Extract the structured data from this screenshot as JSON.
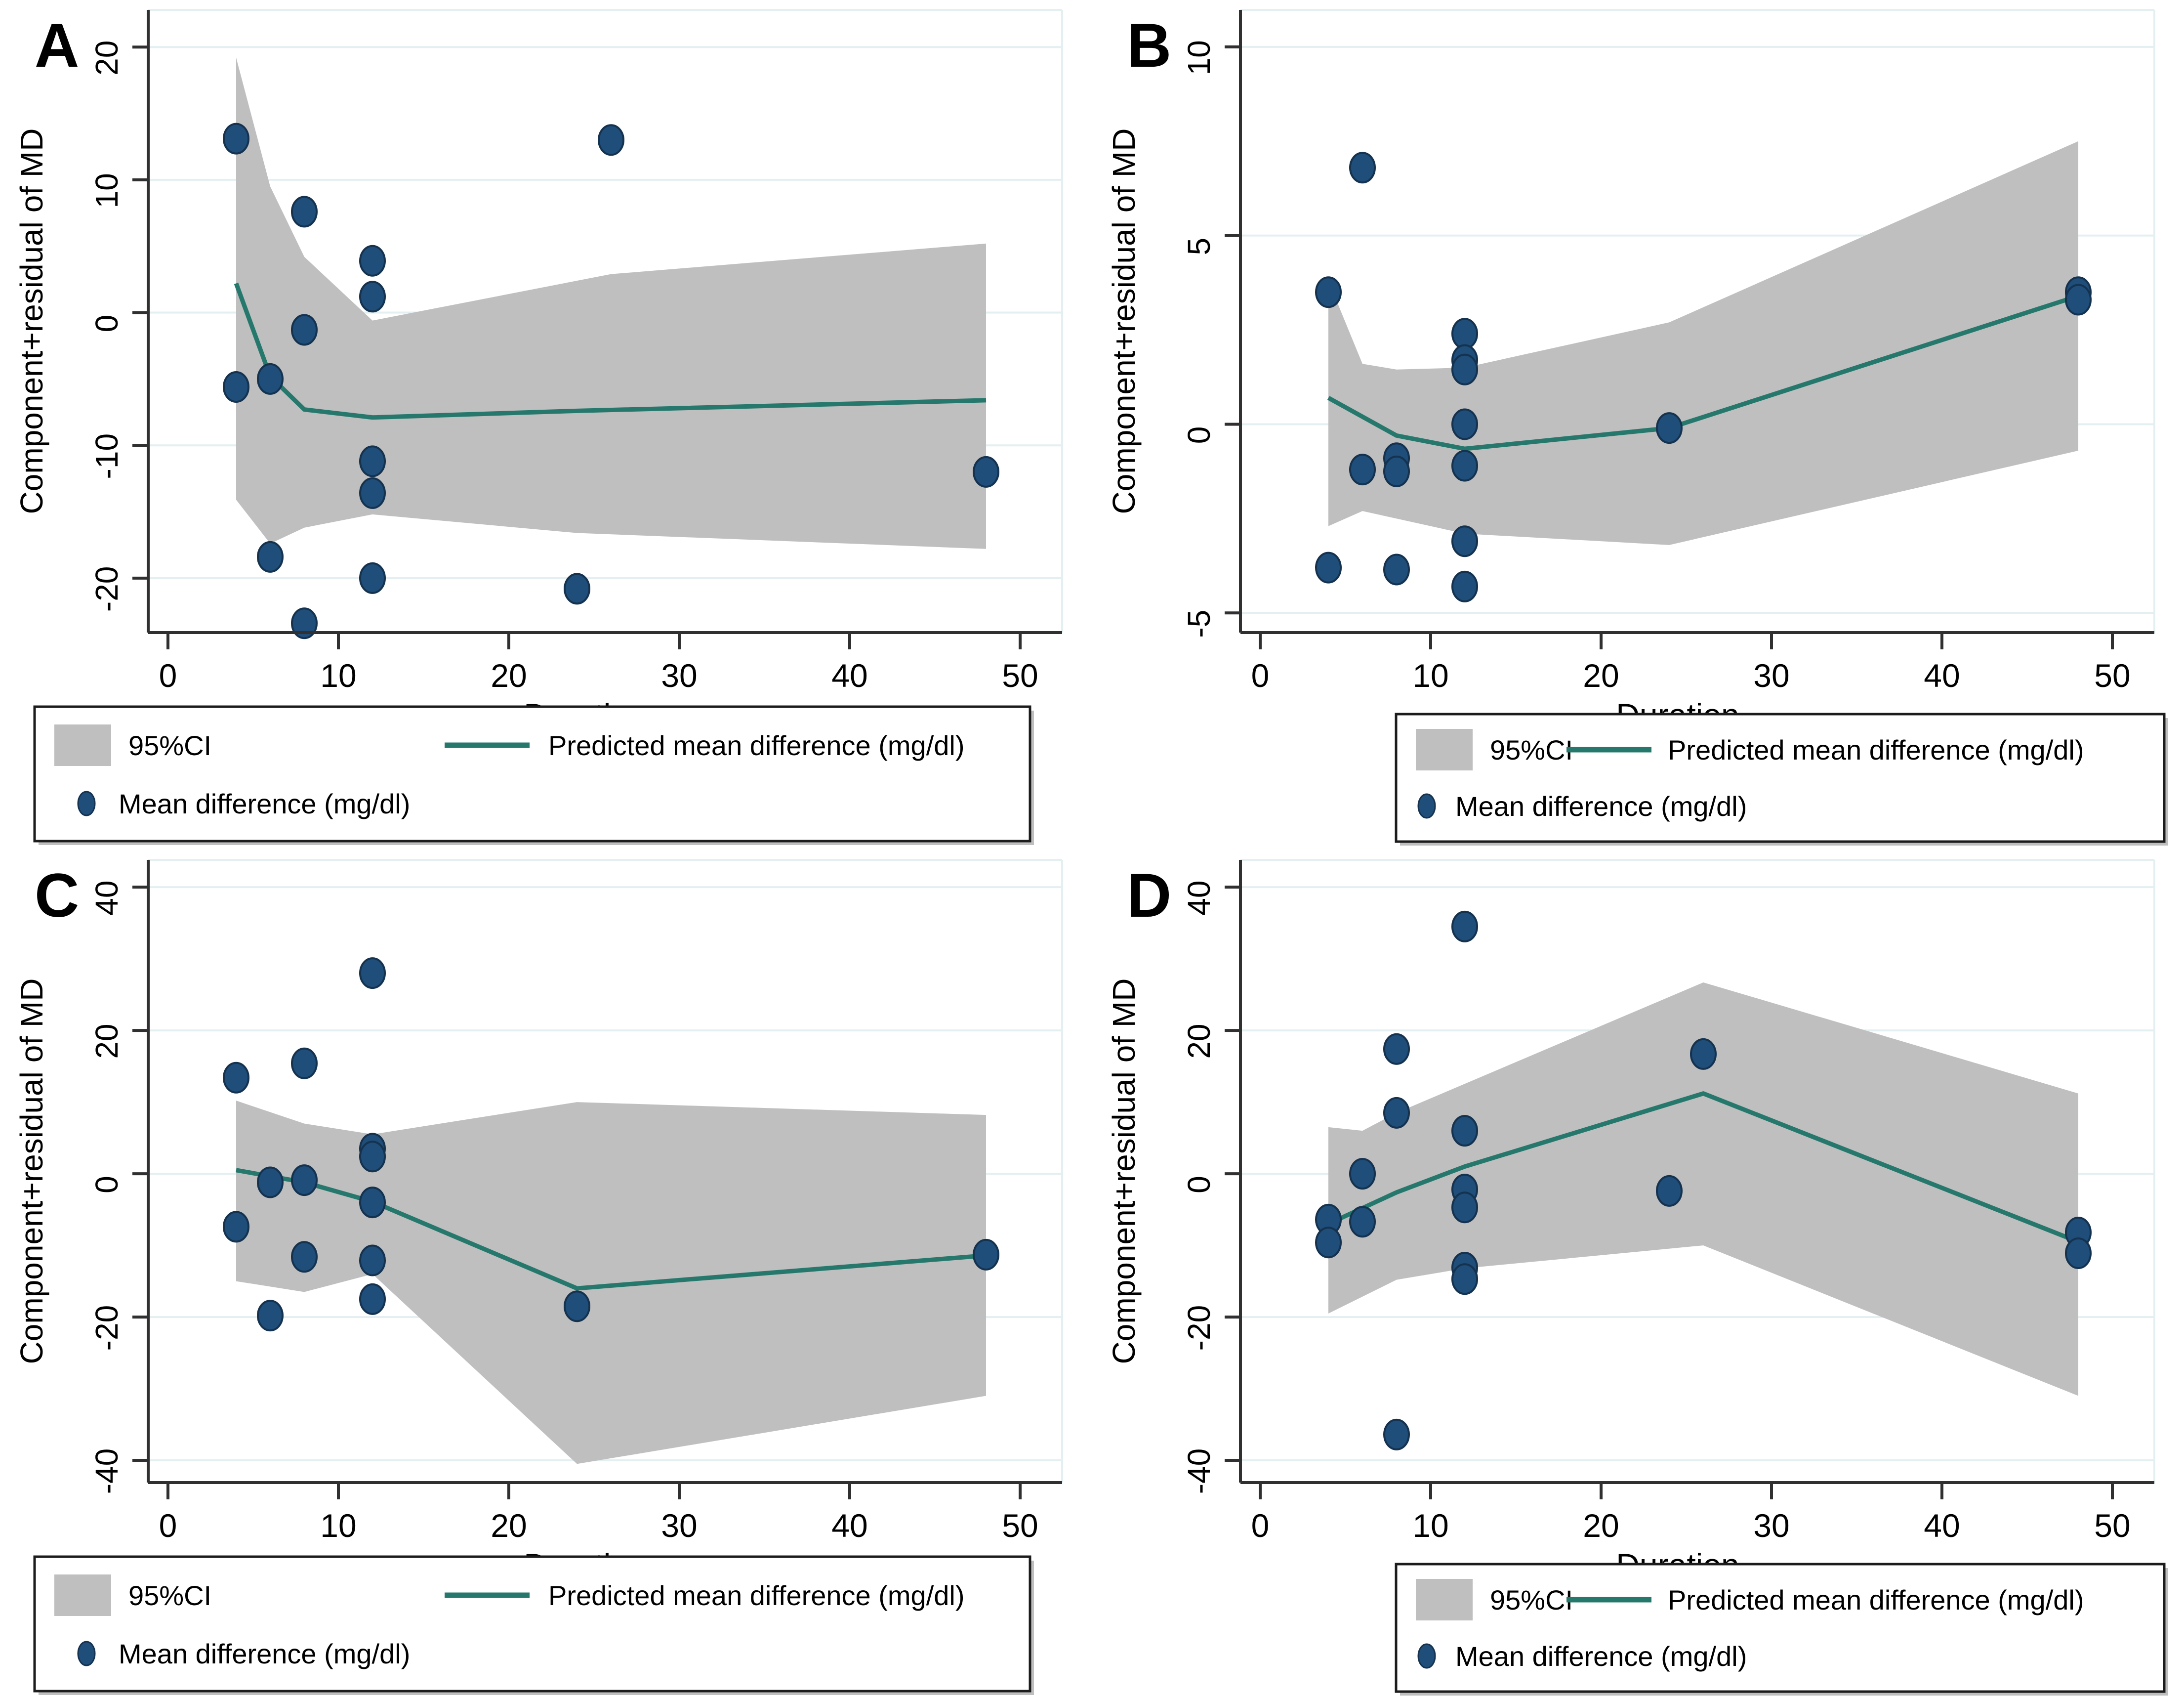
{
  "figure": {
    "background": "#ffffff",
    "panel_letters": [
      "A",
      "B",
      "C",
      "D"
    ]
  },
  "colors": {
    "point_fill": "#1f4e7a",
    "point_stroke": "#15324f",
    "trend_line": "#26786d",
    "ci_band": "#bfbfbf",
    "gridline": "#e4eff2",
    "axis": "#303030",
    "text": "#000000",
    "legend_border": "#1c1c1c",
    "legend_shadow": "#8a8a8a"
  },
  "legend": {
    "ci_label": "95%CI",
    "line_label": "Predicted mean difference (mg/dl)",
    "point_label": "Mean difference (mg/dl)"
  },
  "chart_data": [
    {
      "id": "A",
      "type": "scatter",
      "title": "A",
      "xlabel": "Duration",
      "ylabel": "Component+residual of MD",
      "xticks": [
        0,
        10,
        20,
        30,
        40,
        50
      ],
      "yticks": [
        -20,
        -10,
        0,
        10,
        20
      ],
      "ylim": [
        -24.1,
        22.8
      ],
      "xlim": [
        -1.2,
        56.5
      ],
      "grid": true,
      "legend_position": "below",
      "legend_layout": "wide",
      "points": [
        [
          4,
          13.1
        ],
        [
          26,
          13.0
        ],
        [
          8,
          7.6
        ],
        [
          12,
          3.9
        ],
        [
          12,
          1.2
        ],
        [
          8,
          -1.3
        ],
        [
          6,
          -5.0
        ],
        [
          4,
          -5.6
        ],
        [
          12,
          -11.2
        ],
        [
          12,
          -13.6
        ],
        [
          6,
          -18.4
        ],
        [
          12,
          -20.0
        ],
        [
          24,
          -20.8
        ],
        [
          8,
          -23.4
        ],
        [
          48,
          -12.0
        ]
      ],
      "line": [
        [
          4,
          2.2
        ],
        [
          6,
          -4.8
        ],
        [
          8,
          -7.3
        ],
        [
          12,
          -7.9
        ],
        [
          24,
          -7.4
        ],
        [
          48,
          -6.6
        ]
      ],
      "ci_upper": [
        [
          4,
          19.2
        ],
        [
          6,
          9.5
        ],
        [
          8,
          4.2
        ],
        [
          12,
          -0.6
        ],
        [
          26,
          2.9
        ],
        [
          48,
          5.2
        ]
      ],
      "ci_lower": [
        [
          4,
          -14.1
        ],
        [
          6,
          -17.4
        ],
        [
          8,
          -16.2
        ],
        [
          12,
          -15.2
        ],
        [
          24,
          -16.6
        ],
        [
          48,
          -17.8
        ]
      ]
    },
    {
      "id": "B",
      "type": "scatter",
      "title": "B",
      "xlabel": "Duration",
      "ylabel": "Component+residual of MD",
      "xticks": [
        0,
        10,
        20,
        30,
        40,
        50
      ],
      "yticks": [
        -5,
        0,
        5,
        10
      ],
      "ylim": [
        -5.52,
        10.98
      ],
      "xlim": [
        -1.2,
        56.5
      ],
      "grid": true,
      "legend_position": "below",
      "legend_layout": "narrow",
      "points": [
        [
          6,
          6.8
        ],
        [
          4,
          3.5
        ],
        [
          12,
          2.4
        ],
        [
          12,
          1.7
        ],
        [
          12,
          1.45
        ],
        [
          12,
          0.0
        ],
        [
          24,
          -0.1
        ],
        [
          8,
          -0.9
        ],
        [
          6,
          -1.2
        ],
        [
          8,
          -1.25
        ],
        [
          12,
          -1.1
        ],
        [
          12,
          -3.1
        ],
        [
          4,
          -3.8
        ],
        [
          8,
          -3.85
        ],
        [
          12,
          -4.3
        ],
        [
          48,
          3.5
        ],
        [
          48,
          3.3
        ]
      ],
      "line": [
        [
          4,
          0.7
        ],
        [
          8,
          -0.3
        ],
        [
          12,
          -0.65
        ],
        [
          24,
          -0.1
        ],
        [
          48,
          3.4
        ]
      ],
      "ci_upper": [
        [
          4,
          3.8
        ],
        [
          6,
          1.6
        ],
        [
          8,
          1.45
        ],
        [
          12,
          1.5
        ],
        [
          24,
          2.7
        ],
        [
          48,
          7.5
        ]
      ],
      "ci_lower": [
        [
          4,
          -2.7
        ],
        [
          6,
          -2.3
        ],
        [
          8,
          -2.5
        ],
        [
          12,
          -2.9
        ],
        [
          24,
          -3.2
        ],
        [
          48,
          -0.7
        ]
      ]
    },
    {
      "id": "C",
      "type": "scatter",
      "title": "C",
      "xlabel": "Duration",
      "ylabel": "Component+residual of MD",
      "xticks": [
        0,
        10,
        20,
        30,
        40,
        50
      ],
      "yticks": [
        -40,
        -20,
        0,
        20,
        40
      ],
      "ylim": [
        -43.1,
        43.8
      ],
      "xlim": [
        -1.2,
        56.5
      ],
      "grid": true,
      "legend_position": "below",
      "legend_layout": "wide",
      "points": [
        [
          12,
          28.0
        ],
        [
          8,
          15.4
        ],
        [
          4,
          13.4
        ],
        [
          12,
          3.5
        ],
        [
          12,
          2.4
        ],
        [
          6,
          -1.2
        ],
        [
          8,
          -0.9
        ],
        [
          12,
          -4.0
        ],
        [
          4,
          -7.4
        ],
        [
          8,
          -11.6
        ],
        [
          12,
          -12.1
        ],
        [
          12,
          -17.5
        ],
        [
          24,
          -18.5
        ],
        [
          6,
          -19.8
        ],
        [
          48,
          -11.3
        ]
      ],
      "line": [
        [
          4,
          0.5
        ],
        [
          8,
          -1.2
        ],
        [
          12,
          -3.9
        ],
        [
          24,
          -16.0
        ],
        [
          48,
          -11.4
        ]
      ],
      "ci_upper": [
        [
          4,
          10.2
        ],
        [
          8,
          7.0
        ],
        [
          12,
          5.5
        ],
        [
          24,
          10.0
        ],
        [
          48,
          8.2
        ]
      ],
      "ci_lower": [
        [
          4,
          -15.0
        ],
        [
          8,
          -16.5
        ],
        [
          12,
          -14.0
        ],
        [
          24,
          -40.5
        ],
        [
          48,
          -31.0
        ]
      ]
    },
    {
      "id": "D",
      "type": "scatter",
      "title": "D",
      "xlabel": "Duration",
      "ylabel": "Component+residual of MD",
      "xticks": [
        0,
        10,
        20,
        30,
        40,
        50
      ],
      "yticks": [
        -40,
        -20,
        0,
        20,
        40
      ],
      "ylim": [
        -43.1,
        43.8
      ],
      "xlim": [
        -1.2,
        56.5
      ],
      "grid": true,
      "legend_position": "below",
      "legend_layout": "narrow",
      "points": [
        [
          12,
          34.5
        ],
        [
          8,
          17.4
        ],
        [
          26,
          16.7
        ],
        [
          8,
          8.5
        ],
        [
          12,
          6.0
        ],
        [
          6,
          0.0
        ],
        [
          12,
          -2.2
        ],
        [
          12,
          -4.7
        ],
        [
          4,
          -6.4
        ],
        [
          6,
          -6.7
        ],
        [
          4,
          -9.6
        ],
        [
          24,
          -2.4
        ],
        [
          12,
          -13.1
        ],
        [
          12,
          -14.7
        ],
        [
          8,
          -36.4
        ],
        [
          48,
          -8.2
        ],
        [
          48,
          -11.1
        ]
      ],
      "line": [
        [
          4,
          -7.0
        ],
        [
          8,
          -2.6
        ],
        [
          12,
          1.0
        ],
        [
          26,
          11.2
        ],
        [
          48,
          -9.5
        ]
      ],
      "ci_upper": [
        [
          4,
          6.5
        ],
        [
          6,
          6.0
        ],
        [
          8,
          8.5
        ],
        [
          26,
          26.7
        ],
        [
          48,
          11.2
        ]
      ],
      "ci_lower": [
        [
          4,
          -19.5
        ],
        [
          8,
          -14.8
        ],
        [
          12,
          -13.2
        ],
        [
          26,
          -10.0
        ],
        [
          48,
          -31.0
        ]
      ]
    }
  ]
}
